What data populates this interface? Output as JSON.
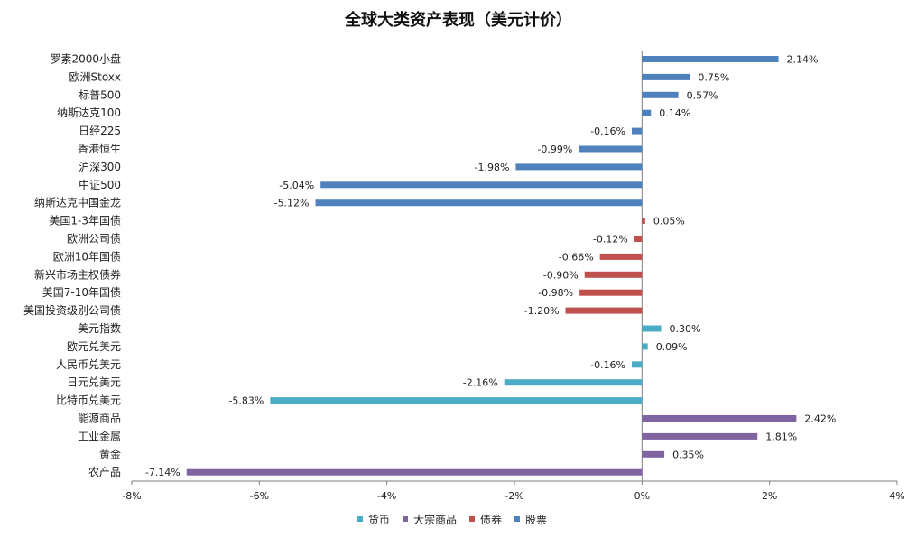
{
  "chart_data": {
    "type": "bar",
    "orientation": "horizontal",
    "title": "全球大类资产表现（美元计价）",
    "xlabel": "",
    "ylabel": "",
    "xlim": [
      -8,
      4
    ],
    "x_ticks": [
      "-8%",
      "-6%",
      "-4%",
      "-2%",
      "0%",
      "2%",
      "4%"
    ],
    "x_tick_values": [
      -8,
      -6,
      -4,
      -2,
      0,
      2,
      4
    ],
    "grid": false,
    "legend_position": "bottom",
    "colors": {
      "货币": "#4BACC6",
      "大宗商品": "#8064A2",
      "债券": "#C0504D",
      "股票": "#4F81BD"
    },
    "legend": [
      {
        "name": "货币",
        "color": "#4BACC6"
      },
      {
        "name": "大宗商品",
        "color": "#8064A2"
      },
      {
        "name": "债券",
        "color": "#C0504D"
      },
      {
        "name": "股票",
        "color": "#4F81BD"
      }
    ],
    "categories": [
      "罗素2000小盘",
      "欧洲Stoxx",
      "标普500",
      "纳斯达克100",
      "日经225",
      "香港恒生",
      "沪深300",
      "中证500",
      "纳斯达克中国金龙",
      "美国1-3年国债",
      "欧洲公司债",
      "欧洲10年国债",
      "新兴市场主权债券",
      "美国7-10年国债",
      "美国投资级别公司债",
      "美元指数",
      "欧元兑美元",
      "人民币兑美元",
      "日元兑美元",
      "比特币兑美元",
      "能源商品",
      "工业金属",
      "黄金",
      "农产品"
    ],
    "values": [
      2.14,
      0.75,
      0.57,
      0.14,
      -0.16,
      -0.99,
      -1.98,
      -5.04,
      -5.12,
      0.05,
      -0.12,
      -0.66,
      -0.9,
      -0.98,
      -1.2,
      0.3,
      0.09,
      -0.16,
      -2.16,
      -5.83,
      2.42,
      1.81,
      0.35,
      -7.14
    ],
    "value_labels": [
      "2.14%",
      "0.75%",
      "0.57%",
      "0.14%",
      "-0.16%",
      "-0.99%",
      "-1.98%",
      "-5.04%",
      "-5.12%",
      "0.05%",
      "-0.12%",
      "-0.66%",
      "-0.90%",
      "-0.98%",
      "-1.20%",
      "0.30%",
      "0.09%",
      "-0.16%",
      "-2.16%",
      "-5.83%",
      "2.42%",
      "1.81%",
      "0.35%",
      "-7.14%"
    ],
    "groups": [
      "股票",
      "股票",
      "股票",
      "股票",
      "股票",
      "股票",
      "股票",
      "股票",
      "股票",
      "债券",
      "债券",
      "债券",
      "债券",
      "债券",
      "债券",
      "货币",
      "货币",
      "货币",
      "货币",
      "货币",
      "大宗商品",
      "大宗商品",
      "大宗商品",
      "大宗商品"
    ]
  }
}
